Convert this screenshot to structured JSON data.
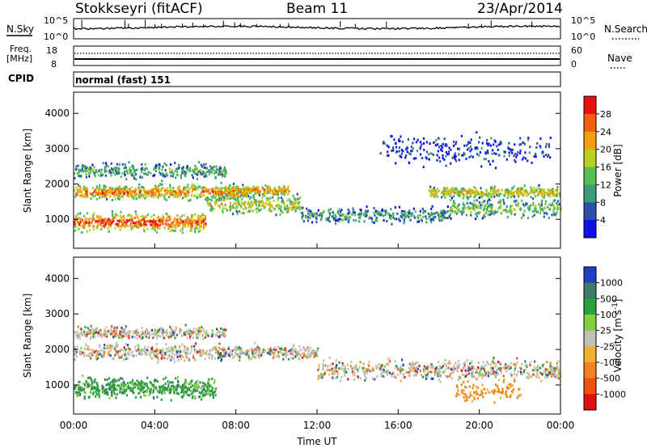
{
  "header": {
    "station": "Stokkseyri (fitACF)",
    "beam": "Beam 11",
    "date": "23/Apr/2014"
  },
  "noise_panel": {
    "left_label": "N.Sky",
    "right_label": "N.Search",
    "left_ticks": [
      "10^5",
      "10^0"
    ],
    "right_ticks": [
      "10^5",
      "10^0"
    ]
  },
  "freq_panel": {
    "left_label_line1": "Freq.",
    "left_label_line2": "[MHz]",
    "right_label": "Nave",
    "left_ticks": [
      "18",
      "8"
    ],
    "right_ticks": [
      "60",
      "0"
    ]
  },
  "cpid": {
    "label": "CPID",
    "value": "normal (fast) 151"
  },
  "chart_data": [
    {
      "type": "heatmap",
      "title": "",
      "xlabel": "",
      "ylabel": "Slant Range [km]",
      "x_ticks": [
        "00:00",
        "04:00",
        "08:00",
        "12:00",
        "16:00",
        "20:00",
        "00:00"
      ],
      "y_ticks": [
        1000,
        2000,
        3000,
        4000
      ],
      "ylim": [
        180,
        4600
      ],
      "xlim_hours": [
        0,
        24
      ],
      "colorbar": {
        "label": "Power [dB]",
        "ticks": [
          4,
          8,
          12,
          16,
          20,
          24,
          28
        ],
        "colors": [
          "#1010e8",
          "#2a50a8",
          "#3c9c78",
          "#56c050",
          "#b8d020",
          "#f4a010",
          "#f06010",
          "#e81010"
        ]
      },
      "bands": [
        {
          "name": "",
          "start_h": 0.0,
          "end_h": 6.5,
          "center_km": 950,
          "width_km": 350,
          "level": 0.9
        },
        {
          "name": "",
          "start_h": 6.5,
          "end_h": 11.2,
          "center_km": 1450,
          "width_km": 400,
          "level": 0.6
        },
        {
          "name": "",
          "start_h": 11.2,
          "end_h": 18.5,
          "center_km": 1150,
          "width_km": 300,
          "level": 0.35
        },
        {
          "name": "",
          "start_h": 18.5,
          "end_h": 24.0,
          "center_km": 1350,
          "width_km": 400,
          "level": 0.45
        },
        {
          "name": "",
          "start_h": 0.0,
          "end_h": 8.5,
          "center_km": 1800,
          "width_km": 280,
          "level": 0.8
        },
        {
          "name": "",
          "start_h": 7.5,
          "end_h": 10.6,
          "center_km": 1850,
          "width_km": 200,
          "level": 0.75
        },
        {
          "name": "",
          "start_h": 17.5,
          "end_h": 24.0,
          "center_km": 1800,
          "width_km": 220,
          "level": 0.65
        },
        {
          "name": "",
          "start_h": 0.0,
          "end_h": 7.5,
          "center_km": 2400,
          "width_km": 300,
          "level": 0.4
        },
        {
          "name": "",
          "start_h": 15.0,
          "end_h": 23.5,
          "center_km": 3000,
          "width_km": 600,
          "level": 0.15
        }
      ]
    },
    {
      "type": "heatmap",
      "title": "",
      "xlabel": "Time UT",
      "ylabel": "Slant Range [km]",
      "x_ticks": [
        "00:00",
        "04:00",
        "08:00",
        "12:00",
        "16:00",
        "20:00",
        "00:00"
      ],
      "y_ticks": [
        1000,
        2000,
        3000,
        4000
      ],
      "ylim": [
        180,
        4600
      ],
      "xlim_hours": [
        0,
        24
      ],
      "colorbar": {
        "label": "Velocity [m s^-1]",
        "ticks": [
          1000,
          500,
          100,
          25,
          -25,
          -100,
          -500,
          -1000
        ],
        "colors": [
          "#2040c0",
          "#3c7c68",
          "#2aa040",
          "#80d040",
          "#c0c0b8",
          "#f0b030",
          "#f08020",
          "#f05010",
          "#e01010"
        ]
      },
      "bands": [
        {
          "name": "",
          "start_h": 0.0,
          "end_h": 7.0,
          "center_km": 950,
          "width_km": 380,
          "level": 0.9
        },
        {
          "name": "",
          "start_h": 0.0,
          "end_h": 12.0,
          "center_km": 1950,
          "width_km": 300,
          "level": 0.5
        },
        {
          "name": "",
          "start_h": 12.0,
          "end_h": 24.0,
          "center_km": 1450,
          "width_km": 400,
          "level": 0.5
        },
        {
          "name": "",
          "start_h": 18.8,
          "end_h": 22.0,
          "center_km": 850,
          "width_km": 400,
          "level": 0.2
        },
        {
          "name": "",
          "start_h": 0.0,
          "end_h": 7.5,
          "center_km": 2500,
          "width_km": 250,
          "level": 0.45
        }
      ]
    }
  ]
}
